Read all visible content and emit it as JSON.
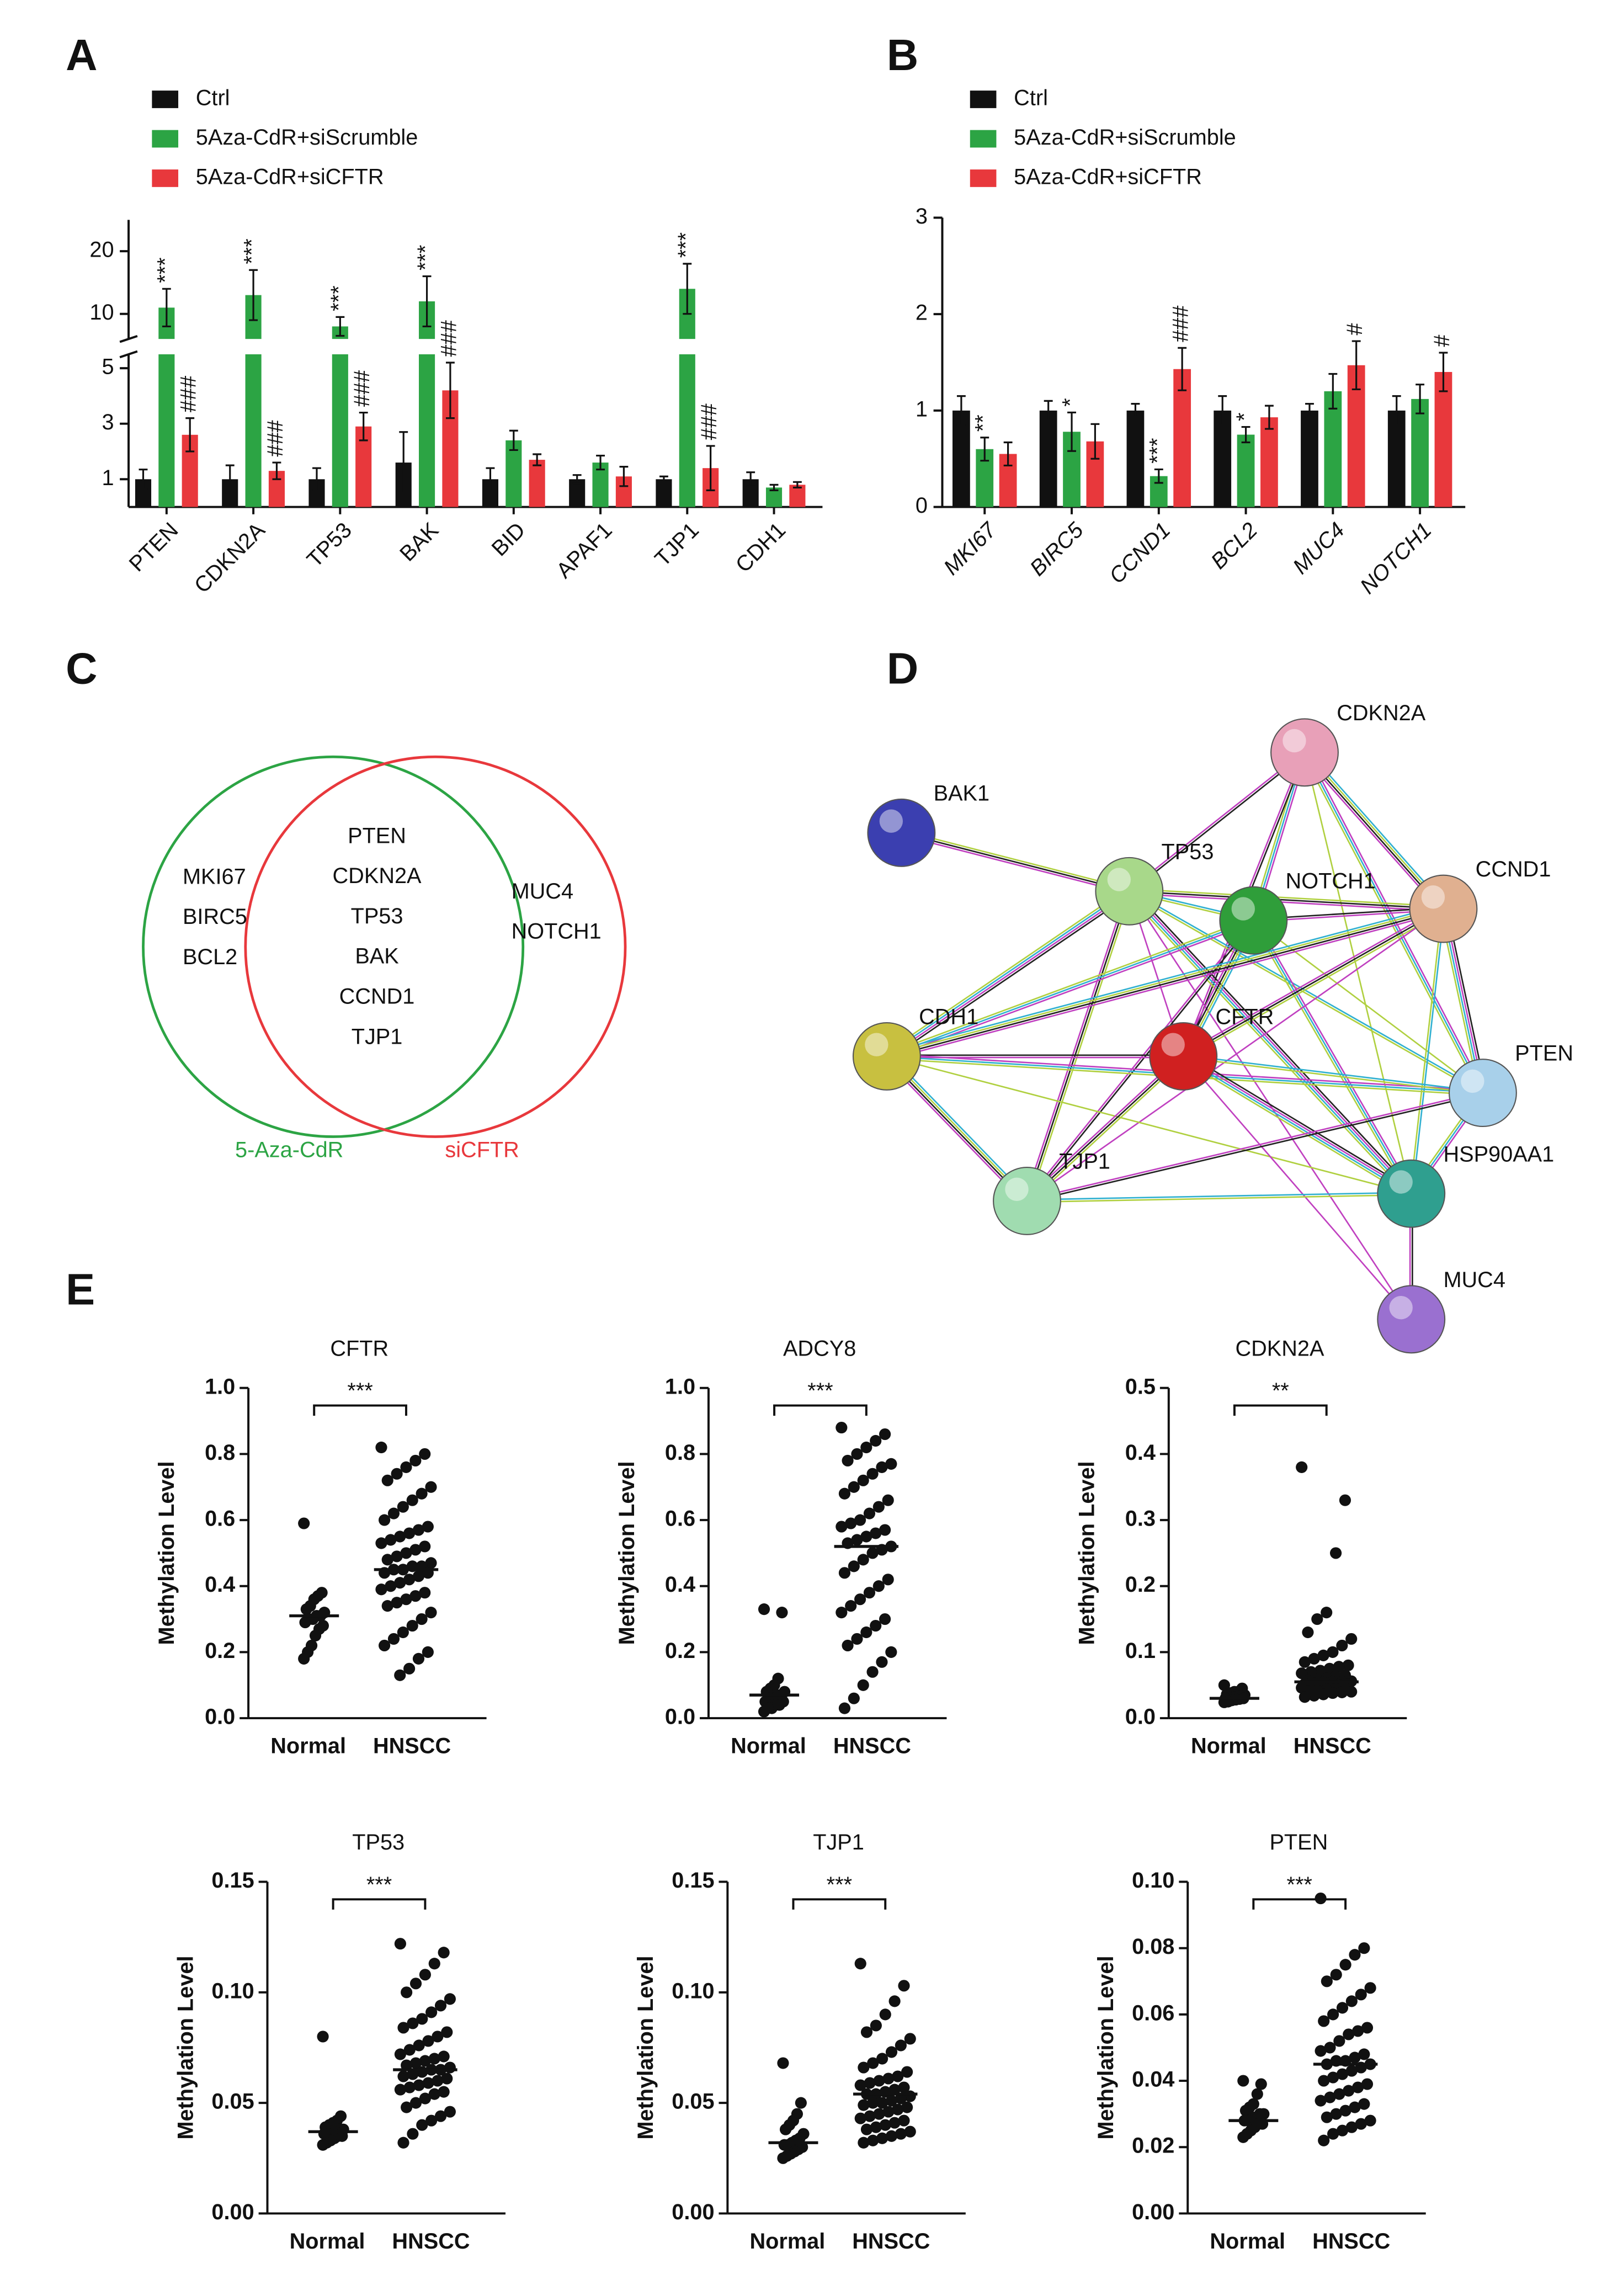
{
  "panel_labels": [
    "A",
    "B",
    "C",
    "D",
    "E"
  ],
  "chart_data": [
    {
      "type": "bar",
      "categories": [
        "PTEN",
        "CDKN2A",
        "TP53",
        "BAK",
        "BID",
        "APAF1",
        "TJP1",
        "CDH1"
      ],
      "ylim_segments": [
        [
          0,
          5.5
        ],
        [
          6,
          25
        ]
      ],
      "yticks": [
        1,
        3,
        5,
        10,
        20
      ],
      "series": [
        {
          "name": "Ctrl",
          "color": "#111111",
          "values": [
            1,
            1,
            1,
            1.6,
            1,
            1,
            1,
            1
          ],
          "errors": [
            0.35,
            0.5,
            0.4,
            1.1,
            0.4,
            0.15,
            0.1,
            0.25
          ],
          "annotations": [
            null,
            null,
            null,
            null,
            null,
            null,
            null,
            null
          ]
        },
        {
          "name": "5Aza-CdR+siScrumble",
          "color": "#2ca444",
          "values": [
            11,
            13,
            8,
            12,
            2.4,
            1.6,
            14,
            0.7
          ],
          "errors": [
            3,
            4,
            1.5,
            4,
            0.35,
            0.25,
            4,
            0.1
          ],
          "annotations": [
            "***",
            "***",
            "***",
            "***",
            null,
            null,
            "***",
            null
          ]
        },
        {
          "name": "5Aza-CdR+siCFTR",
          "color": "#e8383c",
          "values": [
            2.6,
            1.3,
            2.9,
            4.2,
            1.7,
            1.1,
            1.4,
            0.8
          ],
          "errors": [
            0.6,
            0.3,
            0.5,
            1,
            0.2,
            0.35,
            0.8,
            0.1
          ],
          "annotations": [
            "###",
            "###",
            "###",
            "###",
            null,
            null,
            "###",
            null
          ]
        }
      ]
    },
    {
      "type": "bar",
      "categories": [
        "MKI67",
        "BIRC5",
        "CCND1",
        "BCL2",
        "MUC4",
        "NOTCH1"
      ],
      "category_style": "italic",
      "ylim_segments": [
        [
          0,
          3
        ]
      ],
      "yticks": [
        0,
        1,
        2,
        3
      ],
      "series": [
        {
          "name": "Ctrl",
          "color": "#111111",
          "values": [
            1,
            1,
            1,
            1,
            1,
            1
          ],
          "errors": [
            0.15,
            0.1,
            0.07,
            0.15,
            0.07,
            0.15
          ],
          "annotations": [
            null,
            null,
            null,
            null,
            null,
            null
          ]
        },
        {
          "name": "5Aza-CdR+siScrumble",
          "color": "#2ca444",
          "values": [
            0.6,
            0.78,
            0.32,
            0.75,
            1.2,
            1.12
          ],
          "errors": [
            0.12,
            0.2,
            0.07,
            0.08,
            0.18,
            0.15
          ],
          "annotations": [
            "**",
            "*",
            "***",
            "*",
            null,
            null
          ]
        },
        {
          "name": "5Aza-CdR+siCFTR",
          "color": "#e8383c",
          "values": [
            0.55,
            0.68,
            1.43,
            0.93,
            1.47,
            1.4
          ],
          "errors": [
            0.12,
            0.18,
            0.22,
            0.12,
            0.25,
            0.2
          ],
          "annotations": [
            null,
            null,
            "###",
            null,
            "#",
            "#"
          ]
        }
      ]
    },
    {
      "type": "strip",
      "title": "CFTR",
      "ylabel": "Methylation Level",
      "categories": [
        "Normal",
        "HNSCC"
      ],
      "annotation": "***",
      "color": "#111111",
      "ylim": [
        0,
        1
      ],
      "yticks": [
        {
          "value": 0,
          "label": "0.0"
        },
        0.2,
        0.4,
        0.6,
        0.8,
        {
          "value": 1,
          "label": "1.0"
        }
      ],
      "medians": [
        0.31,
        0.45
      ],
      "groups": [
        [
          0.59,
          0.38,
          0.37,
          0.36,
          0.34,
          0.33,
          0.32,
          0.31,
          0.31,
          0.3,
          0.3,
          0.29,
          0.28,
          0.27,
          0.25,
          0.22,
          0.2,
          0.18
        ],
        [
          0.82,
          0.8,
          0.78,
          0.76,
          0.74,
          0.72,
          0.7,
          0.68,
          0.66,
          0.64,
          0.62,
          0.6,
          0.58,
          0.57,
          0.56,
          0.55,
          0.54,
          0.53,
          0.52,
          0.51,
          0.5,
          0.49,
          0.48,
          0.47,
          0.46,
          0.46,
          0.45,
          0.45,
          0.44,
          0.44,
          0.43,
          0.42,
          0.41,
          0.4,
          0.39,
          0.38,
          0.37,
          0.36,
          0.35,
          0.34,
          0.32,
          0.3,
          0.28,
          0.26,
          0.24,
          0.22,
          0.2,
          0.18,
          0.15,
          0.13
        ]
      ]
    },
    {
      "type": "strip",
      "title": "ADCY8",
      "ylabel": "Methylation Level",
      "categories": [
        "Normal",
        "HNSCC"
      ],
      "annotation": "***",
      "color": "#111111",
      "ylim": [
        0,
        1
      ],
      "yticks": [
        {
          "value": 0,
          "label": "0.0"
        },
        0.2,
        0.4,
        0.6,
        0.8,
        {
          "value": 1,
          "label": "1.0"
        }
      ],
      "medians": [
        0.07,
        0.52
      ],
      "groups": [
        [
          0.33,
          0.32,
          0.12,
          0.1,
          0.09,
          0.08,
          0.08,
          0.07,
          0.07,
          0.06,
          0.06,
          0.05,
          0.05,
          0.04,
          0.04,
          0.03,
          0.03,
          0.02
        ],
        [
          0.88,
          0.86,
          0.84,
          0.82,
          0.8,
          0.78,
          0.77,
          0.76,
          0.74,
          0.72,
          0.7,
          0.68,
          0.66,
          0.64,
          0.62,
          0.6,
          0.59,
          0.58,
          0.57,
          0.56,
          0.55,
          0.54,
          0.53,
          0.52,
          0.51,
          0.5,
          0.48,
          0.46,
          0.44,
          0.42,
          0.4,
          0.38,
          0.36,
          0.34,
          0.32,
          0.3,
          0.28,
          0.26,
          0.24,
          0.22,
          0.2,
          0.17,
          0.14,
          0.1,
          0.06,
          0.03
        ]
      ]
    },
    {
      "type": "strip",
      "title": "CDKN2A",
      "ylabel": "Methylation Level",
      "categories": [
        "Normal",
        "HNSCC"
      ],
      "annotation": "**",
      "color": "#111111",
      "ylim": [
        0,
        0.5
      ],
      "yticks": [
        {
          "value": 0,
          "label": "0.0"
        },
        0.1,
        0.2,
        0.3,
        0.4,
        0.5
      ],
      "medians": [
        0.03,
        0.055
      ],
      "groups": [
        [
          0.05,
          0.045,
          0.04,
          0.04,
          0.038,
          0.036,
          0.035,
          0.034,
          0.033,
          0.032,
          0.031,
          0.03,
          0.03,
          0.029,
          0.028,
          0.027,
          0.025,
          0.024
        ],
        [
          0.38,
          0.33,
          0.25,
          0.16,
          0.15,
          0.13,
          0.12,
          0.11,
          0.1,
          0.095,
          0.09,
          0.085,
          0.08,
          0.078,
          0.075,
          0.072,
          0.07,
          0.068,
          0.065,
          0.063,
          0.06,
          0.058,
          0.057,
          0.056,
          0.055,
          0.055,
          0.054,
          0.053,
          0.052,
          0.051,
          0.05,
          0.049,
          0.048,
          0.047,
          0.046,
          0.045,
          0.044,
          0.043,
          0.042,
          0.041,
          0.04,
          0.039,
          0.038,
          0.036,
          0.034,
          0.032
        ]
      ]
    },
    {
      "type": "strip",
      "title": "TP53",
      "ylabel": "Methylation Level",
      "categories": [
        "Normal",
        "HNSCC"
      ],
      "annotation": "***",
      "color": "#111111",
      "ylim": [
        0,
        0.15
      ],
      "yticks": [
        {
          "value": 0,
          "label": "0.00"
        },
        0.05,
        {
          "value": 0.1,
          "label": "0.10"
        },
        0.15
      ],
      "medians": [
        0.037,
        0.065
      ],
      "groups": [
        [
          0.08,
          0.044,
          0.042,
          0.041,
          0.04,
          0.039,
          0.038,
          0.038,
          0.037,
          0.037,
          0.036,
          0.036,
          0.035,
          0.035,
          0.034,
          0.033,
          0.032,
          0.031
        ],
        [
          0.122,
          0.118,
          0.113,
          0.108,
          0.104,
          0.1,
          0.097,
          0.094,
          0.091,
          0.088,
          0.086,
          0.084,
          0.082,
          0.08,
          0.078,
          0.076,
          0.074,
          0.072,
          0.071,
          0.07,
          0.069,
          0.068,
          0.067,
          0.066,
          0.065,
          0.065,
          0.064,
          0.063,
          0.062,
          0.061,
          0.06,
          0.059,
          0.058,
          0.057,
          0.056,
          0.055,
          0.054,
          0.052,
          0.05,
          0.048,
          0.046,
          0.044,
          0.042,
          0.04,
          0.036,
          0.032
        ]
      ]
    },
    {
      "type": "strip",
      "title": "TJP1",
      "ylabel": "Methylation Level",
      "categories": [
        "Normal",
        "HNSCC"
      ],
      "annotation": "***",
      "color": "#111111",
      "ylim": [
        0,
        0.15
      ],
      "yticks": [
        {
          "value": 0,
          "label": "0.00"
        },
        0.05,
        {
          "value": 0.1,
          "label": "0.10"
        },
        0.15
      ],
      "medians": [
        0.032,
        0.054
      ],
      "groups": [
        [
          0.068,
          0.05,
          0.045,
          0.042,
          0.04,
          0.038,
          0.036,
          0.034,
          0.033,
          0.032,
          0.031,
          0.031,
          0.03,
          0.029,
          0.028,
          0.027,
          0.026,
          0.025
        ],
        [
          0.113,
          0.103,
          0.096,
          0.09,
          0.085,
          0.082,
          0.079,
          0.076,
          0.073,
          0.07,
          0.068,
          0.066,
          0.064,
          0.062,
          0.061,
          0.06,
          0.059,
          0.058,
          0.057,
          0.056,
          0.055,
          0.054,
          0.054,
          0.053,
          0.052,
          0.051,
          0.05,
          0.05,
          0.049,
          0.048,
          0.047,
          0.046,
          0.045,
          0.044,
          0.043,
          0.042,
          0.041,
          0.04,
          0.039,
          0.038,
          0.037,
          0.036,
          0.035,
          0.034,
          0.033,
          0.032
        ]
      ]
    },
    {
      "type": "strip",
      "title": "PTEN",
      "ylabel": "Methylation Level",
      "categories": [
        "Normal",
        "HNSCC"
      ],
      "annotation": "***",
      "color": "#111111",
      "ylim": [
        0,
        0.1
      ],
      "yticks": [
        {
          "value": 0,
          "label": "0.00"
        },
        0.02,
        0.04,
        0.06,
        0.08,
        {
          "value": 0.1,
          "label": "0.10"
        }
      ],
      "medians": [
        0.028,
        0.045
      ],
      "groups": [
        [
          0.04,
          0.039,
          0.036,
          0.033,
          0.032,
          0.031,
          0.03,
          0.03,
          0.029,
          0.029,
          0.028,
          0.028,
          0.027,
          0.027,
          0.026,
          0.025,
          0.024,
          0.023
        ],
        [
          0.095,
          0.08,
          0.078,
          0.075,
          0.072,
          0.07,
          0.068,
          0.066,
          0.064,
          0.062,
          0.06,
          0.058,
          0.056,
          0.055,
          0.054,
          0.052,
          0.05,
          0.049,
          0.048,
          0.047,
          0.046,
          0.046,
          0.045,
          0.045,
          0.044,
          0.043,
          0.042,
          0.041,
          0.04,
          0.039,
          0.038,
          0.037,
          0.036,
          0.035,
          0.034,
          0.033,
          0.032,
          0.031,
          0.03,
          0.029,
          0.028,
          0.027,
          0.026,
          0.025,
          0.024,
          0.022
        ]
      ]
    }
  ],
  "venn": {
    "left_items": [
      "MKI67",
      "BIRC5",
      "BCL2"
    ],
    "center_items": [
      "PTEN",
      "CDKN2A",
      "TP53",
      "BAK",
      "CCND1",
      "TJP1"
    ],
    "right_items": [
      "MUC4",
      "NOTCH1"
    ],
    "left_label": "5-Aza-CdR",
    "right_label": "siCFTR"
  },
  "network": {
    "nodes": [
      "BAK1",
      "CDKN2A",
      "TP53",
      "NOTCH1",
      "CCND1",
      "CDH1",
      "CFTR",
      "PTEN",
      "TJP1",
      "HSP90AA1",
      "MUC4"
    ]
  }
}
